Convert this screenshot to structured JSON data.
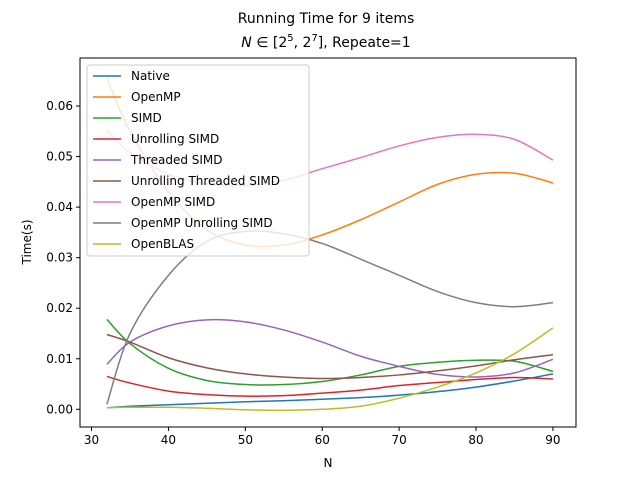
{
  "chart_data": {
    "type": "line",
    "title": "Running Time for 9 items",
    "subtitle_parts": {
      "prefix": "N",
      "op": " ∈ [2",
      "exp1": "5",
      "mid": ", 2",
      "exp2": "7",
      "suffix": "], Repeate=1"
    },
    "xlabel": "N",
    "ylabel": "Time(s)",
    "xlim": [
      28.5,
      93
    ],
    "ylim": [
      -0.0035,
      0.0695
    ],
    "xticks": [
      30,
      40,
      50,
      60,
      70,
      80,
      90
    ],
    "yticks": [
      0.0,
      0.01,
      0.02,
      0.03,
      0.04,
      0.05,
      0.06
    ],
    "ytick_labels": [
      "0.00",
      "0.01",
      "0.02",
      "0.03",
      "0.04",
      "0.05",
      "0.06"
    ],
    "legend_position": "upper-left",
    "x": [
      32,
      35,
      40,
      45,
      50,
      55,
      60,
      65,
      70,
      75,
      80,
      85,
      90
    ],
    "series": [
      {
        "name": "Native",
        "color": "#1f77b4",
        "values": [
          0.0003,
          0.0006,
          0.0009,
          0.0012,
          0.0015,
          0.0017,
          0.002,
          0.0023,
          0.0028,
          0.0035,
          0.0044,
          0.0056,
          0.007
        ]
      },
      {
        "name": "OpenMP",
        "color": "#ff7f0e",
        "values": [
          0.0655,
          0.055,
          0.043,
          0.0355,
          0.0325,
          0.0325,
          0.0345,
          0.0375,
          0.041,
          0.0445,
          0.0465,
          0.0467,
          0.0448
        ]
      },
      {
        "name": "SIMD",
        "color": "#2ca02c",
        "values": [
          0.0178,
          0.013,
          0.0081,
          0.0057,
          0.0049,
          0.0049,
          0.0055,
          0.0068,
          0.0085,
          0.0093,
          0.0097,
          0.0095,
          0.0075
        ]
      },
      {
        "name": "Unrolling SIMD",
        "color": "#d62728",
        "values": [
          0.0065,
          0.0052,
          0.0036,
          0.0029,
          0.0026,
          0.0027,
          0.0032,
          0.0038,
          0.0047,
          0.0053,
          0.0059,
          0.0063,
          0.006
        ]
      },
      {
        "name": "Threaded SIMD",
        "color": "#9467bd",
        "values": [
          0.0089,
          0.0133,
          0.0165,
          0.0177,
          0.0173,
          0.0157,
          0.0133,
          0.0105,
          0.0085,
          0.0069,
          0.0064,
          0.0072,
          0.0099
        ]
      },
      {
        "name": "Unrolling Threaded SIMD",
        "color": "#8c564b",
        "values": [
          0.0148,
          0.0133,
          0.0102,
          0.0082,
          0.007,
          0.0064,
          0.0061,
          0.0063,
          0.0068,
          0.0076,
          0.0086,
          0.0098,
          0.0108
        ]
      },
      {
        "name": "OpenMP SIMD",
        "color": "#e377c2",
        "values": [
          0.0552,
          0.0508,
          0.0465,
          0.0446,
          0.0443,
          0.0453,
          0.0476,
          0.0498,
          0.0521,
          0.0538,
          0.0544,
          0.0534,
          0.0493
        ]
      },
      {
        "name": "OpenMP Unrolling SIMD",
        "color": "#7f7f7f",
        "values": [
          0.001,
          0.015,
          0.0265,
          0.0332,
          0.0352,
          0.0347,
          0.0328,
          0.0297,
          0.0265,
          0.0233,
          0.0211,
          0.0203,
          0.0211
        ]
      },
      {
        "name": "OpenBLAS",
        "color": "#bcbd22",
        "values": [
          0.0003,
          0.0004,
          0.0004,
          0.0002,
          -0.0001,
          -0.0002,
          0.0,
          0.0006,
          0.0022,
          0.0044,
          0.0072,
          0.011,
          0.0161
        ]
      }
    ]
  }
}
